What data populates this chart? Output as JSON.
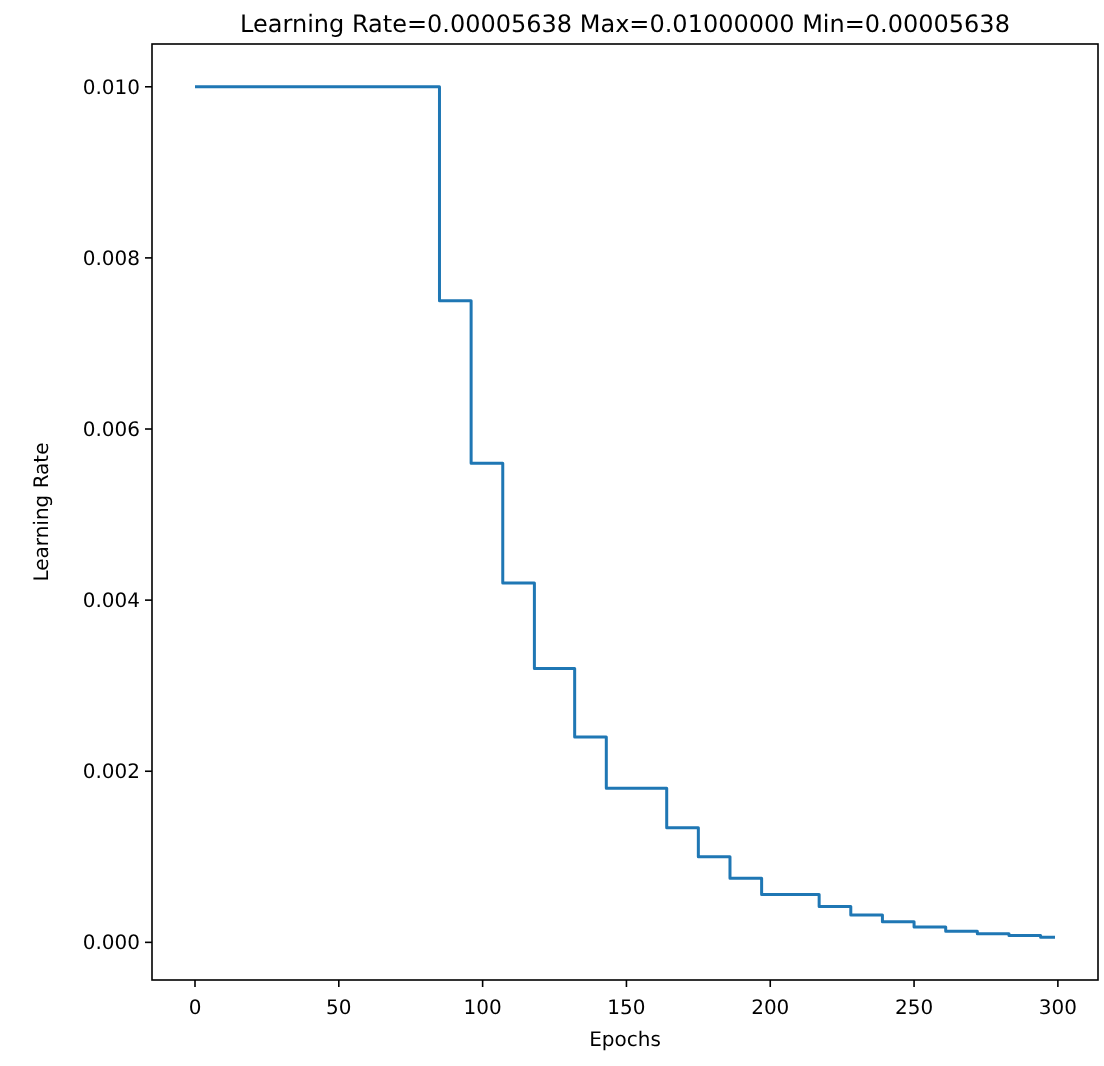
{
  "chart_data": {
    "type": "step",
    "title": "Learning Rate=0.00005638 Max=0.01000000 Min=0.00005638",
    "xlabel": "Epochs",
    "ylabel": "Learning Rate",
    "x": [
      0,
      85,
      96,
      107,
      118,
      132,
      143,
      164,
      175,
      186,
      197,
      217,
      228,
      239,
      250,
      261,
      272,
      283,
      294,
      299
    ],
    "series": [
      {
        "color": "#1f77b4",
        "values": [
          0.01,
          0.0075,
          0.0056,
          0.0042,
          0.0032,
          0.0024,
          0.0018,
          0.00134,
          0.001,
          0.00075,
          0.00056,
          0.00042,
          0.00032,
          0.00024,
          0.00018,
          0.00013,
          0.0001,
          8e-05,
          6e-05,
          6e-05
        ]
      }
    ],
    "xlim": [
      -14.95,
      313.95
    ],
    "xticks": [
      0,
      50,
      100,
      150,
      200,
      250,
      300
    ],
    "ylim": [
      -0.00044,
      0.0105
    ],
    "yticks": [
      {
        "value": 0,
        "label": "0.000"
      },
      {
        "value": 0.002,
        "label": "0.002"
      },
      {
        "value": 0.004,
        "label": "0.004"
      },
      {
        "value": 0.006,
        "label": "0.006"
      },
      {
        "value": 0.008,
        "label": "0.008"
      },
      {
        "value": 0.01,
        "label": "0.010"
      }
    ],
    "grid": false
  }
}
